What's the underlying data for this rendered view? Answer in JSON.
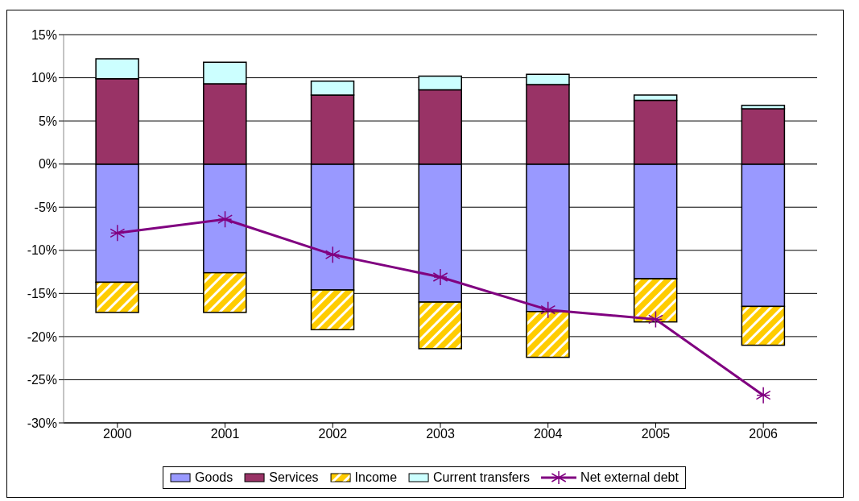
{
  "chart_data": {
    "type": "bar",
    "stacked": true,
    "categories": [
      "2000",
      "2001",
      "2002",
      "2003",
      "2004",
      "2005",
      "2006"
    ],
    "series": [
      {
        "name": "Goods",
        "color": "#9999ff",
        "values": [
          -13.7,
          -12.6,
          -14.6,
          -16.0,
          -17.1,
          -13.3,
          -16.5
        ]
      },
      {
        "name": "Services",
        "color": "#993366",
        "values": [
          9.9,
          9.3,
          8.0,
          8.6,
          9.2,
          7.4,
          6.4
        ]
      },
      {
        "name": "Income",
        "color": "#ffcc00",
        "values": [
          -3.5,
          -4.6,
          -4.6,
          -5.4,
          -5.3,
          -5.0,
          -4.5
        ]
      },
      {
        "name": "Current transfers",
        "color": "#ccffff",
        "values": [
          2.3,
          2.5,
          1.6,
          1.6,
          1.2,
          0.6,
          0.4
        ]
      },
      {
        "name": "Net external debt",
        "type": "line",
        "color": "#800080",
        "marker": "cross",
        "values": [
          -8.0,
          -6.4,
          -10.5,
          -13.1,
          -16.9,
          -18.0,
          -26.8
        ]
      }
    ],
    "ylim": [
      -30,
      15
    ],
    "yticks": [
      {
        "value": -30,
        "label": "-30%"
      },
      {
        "value": -25,
        "label": "-25%"
      },
      {
        "value": -20,
        "label": "-20%"
      },
      {
        "value": -15,
        "label": "-15%"
      },
      {
        "value": -10,
        "label": "-10%"
      },
      {
        "value": -5,
        "label": "-5%"
      },
      {
        "value": 0,
        "label": "0%"
      },
      {
        "value": 5,
        "label": "5%"
      },
      {
        "value": 10,
        "label": "10%"
      },
      {
        "value": 15,
        "label": "15%"
      }
    ],
    "grid": "y",
    "legend": "bottom"
  }
}
